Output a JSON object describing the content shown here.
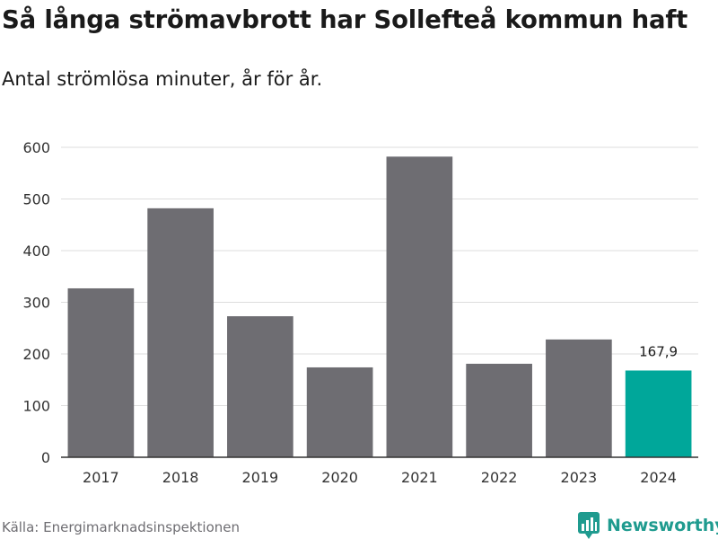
{
  "title": "Så långa strömavbrott har Sollefteå kommun haft",
  "subtitle": "Antal strömlösa minuter, år för år.",
  "source": "Källa: Energimarknadsinspektionen",
  "brand": {
    "name": "Newsworthy",
    "icon": "newsworthy-logo-icon",
    "color": "#1f9b8f"
  },
  "chart_data": {
    "type": "bar",
    "title": "Så långa strömavbrott har Sollefteå kommun haft",
    "subtitle": "Antal strömlösa minuter, år för år.",
    "xlabel": "",
    "ylabel": "",
    "categories": [
      "2017",
      "2018",
      "2019",
      "2020",
      "2021",
      "2022",
      "2023",
      "2024"
    ],
    "values": [
      327,
      482,
      273,
      174,
      582,
      181,
      228,
      167.9
    ],
    "ylim": [
      0,
      600
    ],
    "yticks": [
      0,
      100,
      200,
      300,
      400,
      500,
      600
    ],
    "grid": true,
    "highlight": {
      "index": 7,
      "label": "167,9"
    },
    "colors": {
      "bar": "#6e6d72",
      "highlight": "#00a79a",
      "grid": "#dddddd",
      "axis": "#333333"
    }
  }
}
